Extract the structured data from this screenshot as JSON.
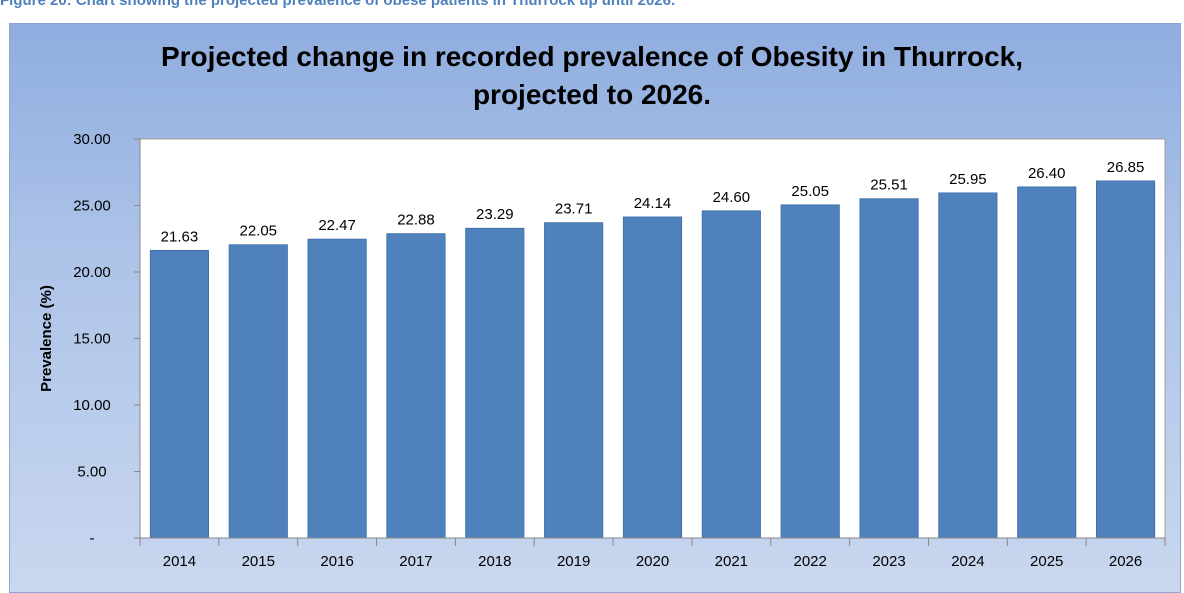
{
  "caption": "Figure 20: Chart showing the projected prevalence of obese patients in Thurrock up until 2026.",
  "colors": {
    "caption": "#4f81bd",
    "bar": "#4f81bd",
    "plot_bg": "#ffffff"
  },
  "chart_data": {
    "type": "bar",
    "title_lines": [
      "Projected change in recorded prevalence of Obesity in Thurrock,",
      "projected to 2026."
    ],
    "xlabel": "",
    "ylabel": "Prevalence (%)",
    "categories": [
      "2014",
      "2015",
      "2016",
      "2017",
      "2018",
      "2019",
      "2020",
      "2021",
      "2022",
      "2023",
      "2024",
      "2025",
      "2026"
    ],
    "values": [
      21.63,
      22.05,
      22.47,
      22.88,
      23.29,
      23.71,
      24.14,
      24.6,
      25.05,
      25.51,
      25.95,
      26.4,
      26.85
    ],
    "data_labels": [
      "21.63",
      "22.05",
      "22.47",
      "22.88",
      "23.29",
      "23.71",
      "24.14",
      "24.60",
      "25.05",
      "25.51",
      "25.95",
      "26.40",
      "26.85"
    ],
    "ylim": [
      0,
      30
    ],
    "yticks": [
      0,
      5,
      10,
      15,
      20,
      25,
      30
    ],
    "ytick_labels": [
      "-",
      "5.00",
      "10.00",
      "15.00",
      "20.00",
      "25.00",
      "30.00"
    ],
    "grid": false,
    "legend": "none"
  }
}
